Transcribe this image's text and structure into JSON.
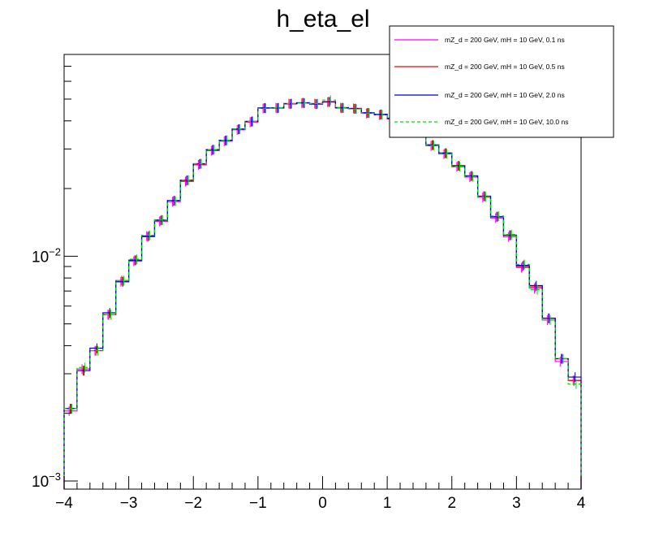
{
  "chart_data": {
    "type": "line",
    "title": "h_eta_el",
    "xlabel": "",
    "ylabel": "",
    "xlim": [
      -4,
      4
    ],
    "ylim": [
      0.0009,
      0.08
    ],
    "yscale": "log",
    "grid": false,
    "legend_position": "top-right",
    "x_tick_labels": [
      "−4",
      "−3",
      "−2",
      "−1",
      "0",
      "1",
      "2",
      "3",
      "4"
    ],
    "x_ticks": [
      -4,
      -3,
      -2,
      -1,
      0,
      1,
      2,
      3,
      4
    ],
    "y_tick_labels": [
      {
        "value": 0.01,
        "base": "10",
        "exp": "−2"
      },
      {
        "value": 0.001,
        "base": "10",
        "exp": "−3"
      }
    ],
    "bin_edges": [
      -4,
      -3.8,
      -3.6,
      -3.4,
      -3.2,
      -3,
      -2.8,
      -2.6,
      -2.4,
      -2.2,
      -2,
      -1.8,
      -1.6,
      -1.4,
      -1.2,
      -1,
      -0.8,
      -0.6,
      -0.4,
      -0.2,
      0,
      0.2,
      0.4,
      0.6,
      0.8,
      1,
      1.2,
      1.4,
      1.6,
      1.8,
      2,
      2.2,
      2.4,
      2.6,
      2.8,
      3,
      3.2,
      3.4,
      3.6,
      3.8,
      4
    ],
    "series": [
      {
        "name": "mZ_d = 200 GeV, mH = 10 GeV, 0.1 ns",
        "color": "#ff00ff",
        "dash": "",
        "values": [
          0.00205,
          0.00315,
          0.0038,
          0.0055,
          0.0077,
          0.0095,
          0.0123,
          0.0143,
          0.0175,
          0.0215,
          0.0255,
          0.0295,
          0.0325,
          0.0365,
          0.0395,
          0.0455,
          0.0458,
          0.0478,
          0.048,
          0.0478,
          0.0485,
          0.0458,
          0.0455,
          0.0432,
          0.0425,
          0.0408,
          0.0395,
          0.0365,
          0.031,
          0.0285,
          0.025,
          0.0225,
          0.0183,
          0.0148,
          0.0122,
          0.0089,
          0.0072,
          0.0052,
          0.0034,
          0.0028
        ]
      },
      {
        "name": "mZ_d = 200 GeV, mH = 10 GeV, 0.5 ns",
        "color": "#ff0000",
        "dash": "",
        "values": [
          0.0021,
          0.0031,
          0.0038,
          0.0055,
          0.0078,
          0.0096,
          0.0122,
          0.0144,
          0.0176,
          0.0217,
          0.0257,
          0.0297,
          0.0327,
          0.0367,
          0.0397,
          0.0456,
          0.0456,
          0.0476,
          0.0482,
          0.0476,
          0.0487,
          0.0456,
          0.0453,
          0.0434,
          0.0427,
          0.041,
          0.0397,
          0.0367,
          0.0312,
          0.0287,
          0.0252,
          0.0227,
          0.0185,
          0.015,
          0.0124,
          0.009,
          0.0073,
          0.0053,
          0.0035,
          0.0028
        ]
      },
      {
        "name": "mZ_d = 200 GeV, mH = 10 GeV, 2.0 ns",
        "color": "#0000cc",
        "dash": "",
        "values": [
          0.0021,
          0.0031,
          0.0039,
          0.0056,
          0.0077,
          0.0096,
          0.0123,
          0.0145,
          0.0177,
          0.0218,
          0.0258,
          0.0298,
          0.0328,
          0.0368,
          0.0398,
          0.0457,
          0.0457,
          0.0477,
          0.0481,
          0.0475,
          0.0486,
          0.0458,
          0.0454,
          0.0435,
          0.0428,
          0.0411,
          0.0398,
          0.0368,
          0.0313,
          0.0288,
          0.0253,
          0.0228,
          0.0185,
          0.015,
          0.0124,
          0.0091,
          0.0074,
          0.0053,
          0.0035,
          0.0029
        ]
      },
      {
        "name": "mZ_d = 200 GeV, mH = 10 GeV, 10.0 ns",
        "color": "#00dd00",
        "dash": "4,3",
        "values": [
          0.0021,
          0.0032,
          0.0038,
          0.0055,
          0.0078,
          0.0097,
          0.0124,
          0.0145,
          0.0176,
          0.0218,
          0.0258,
          0.0298,
          0.0328,
          0.0368,
          0.0398,
          0.0455,
          0.0458,
          0.0478,
          0.048,
          0.0478,
          0.0495,
          0.0457,
          0.0452,
          0.0433,
          0.0426,
          0.0409,
          0.0396,
          0.0366,
          0.0311,
          0.0286,
          0.0251,
          0.0226,
          0.0184,
          0.0151,
          0.0125,
          0.0092,
          0.0071,
          0.0052,
          0.0035,
          0.0027
        ]
      }
    ]
  }
}
